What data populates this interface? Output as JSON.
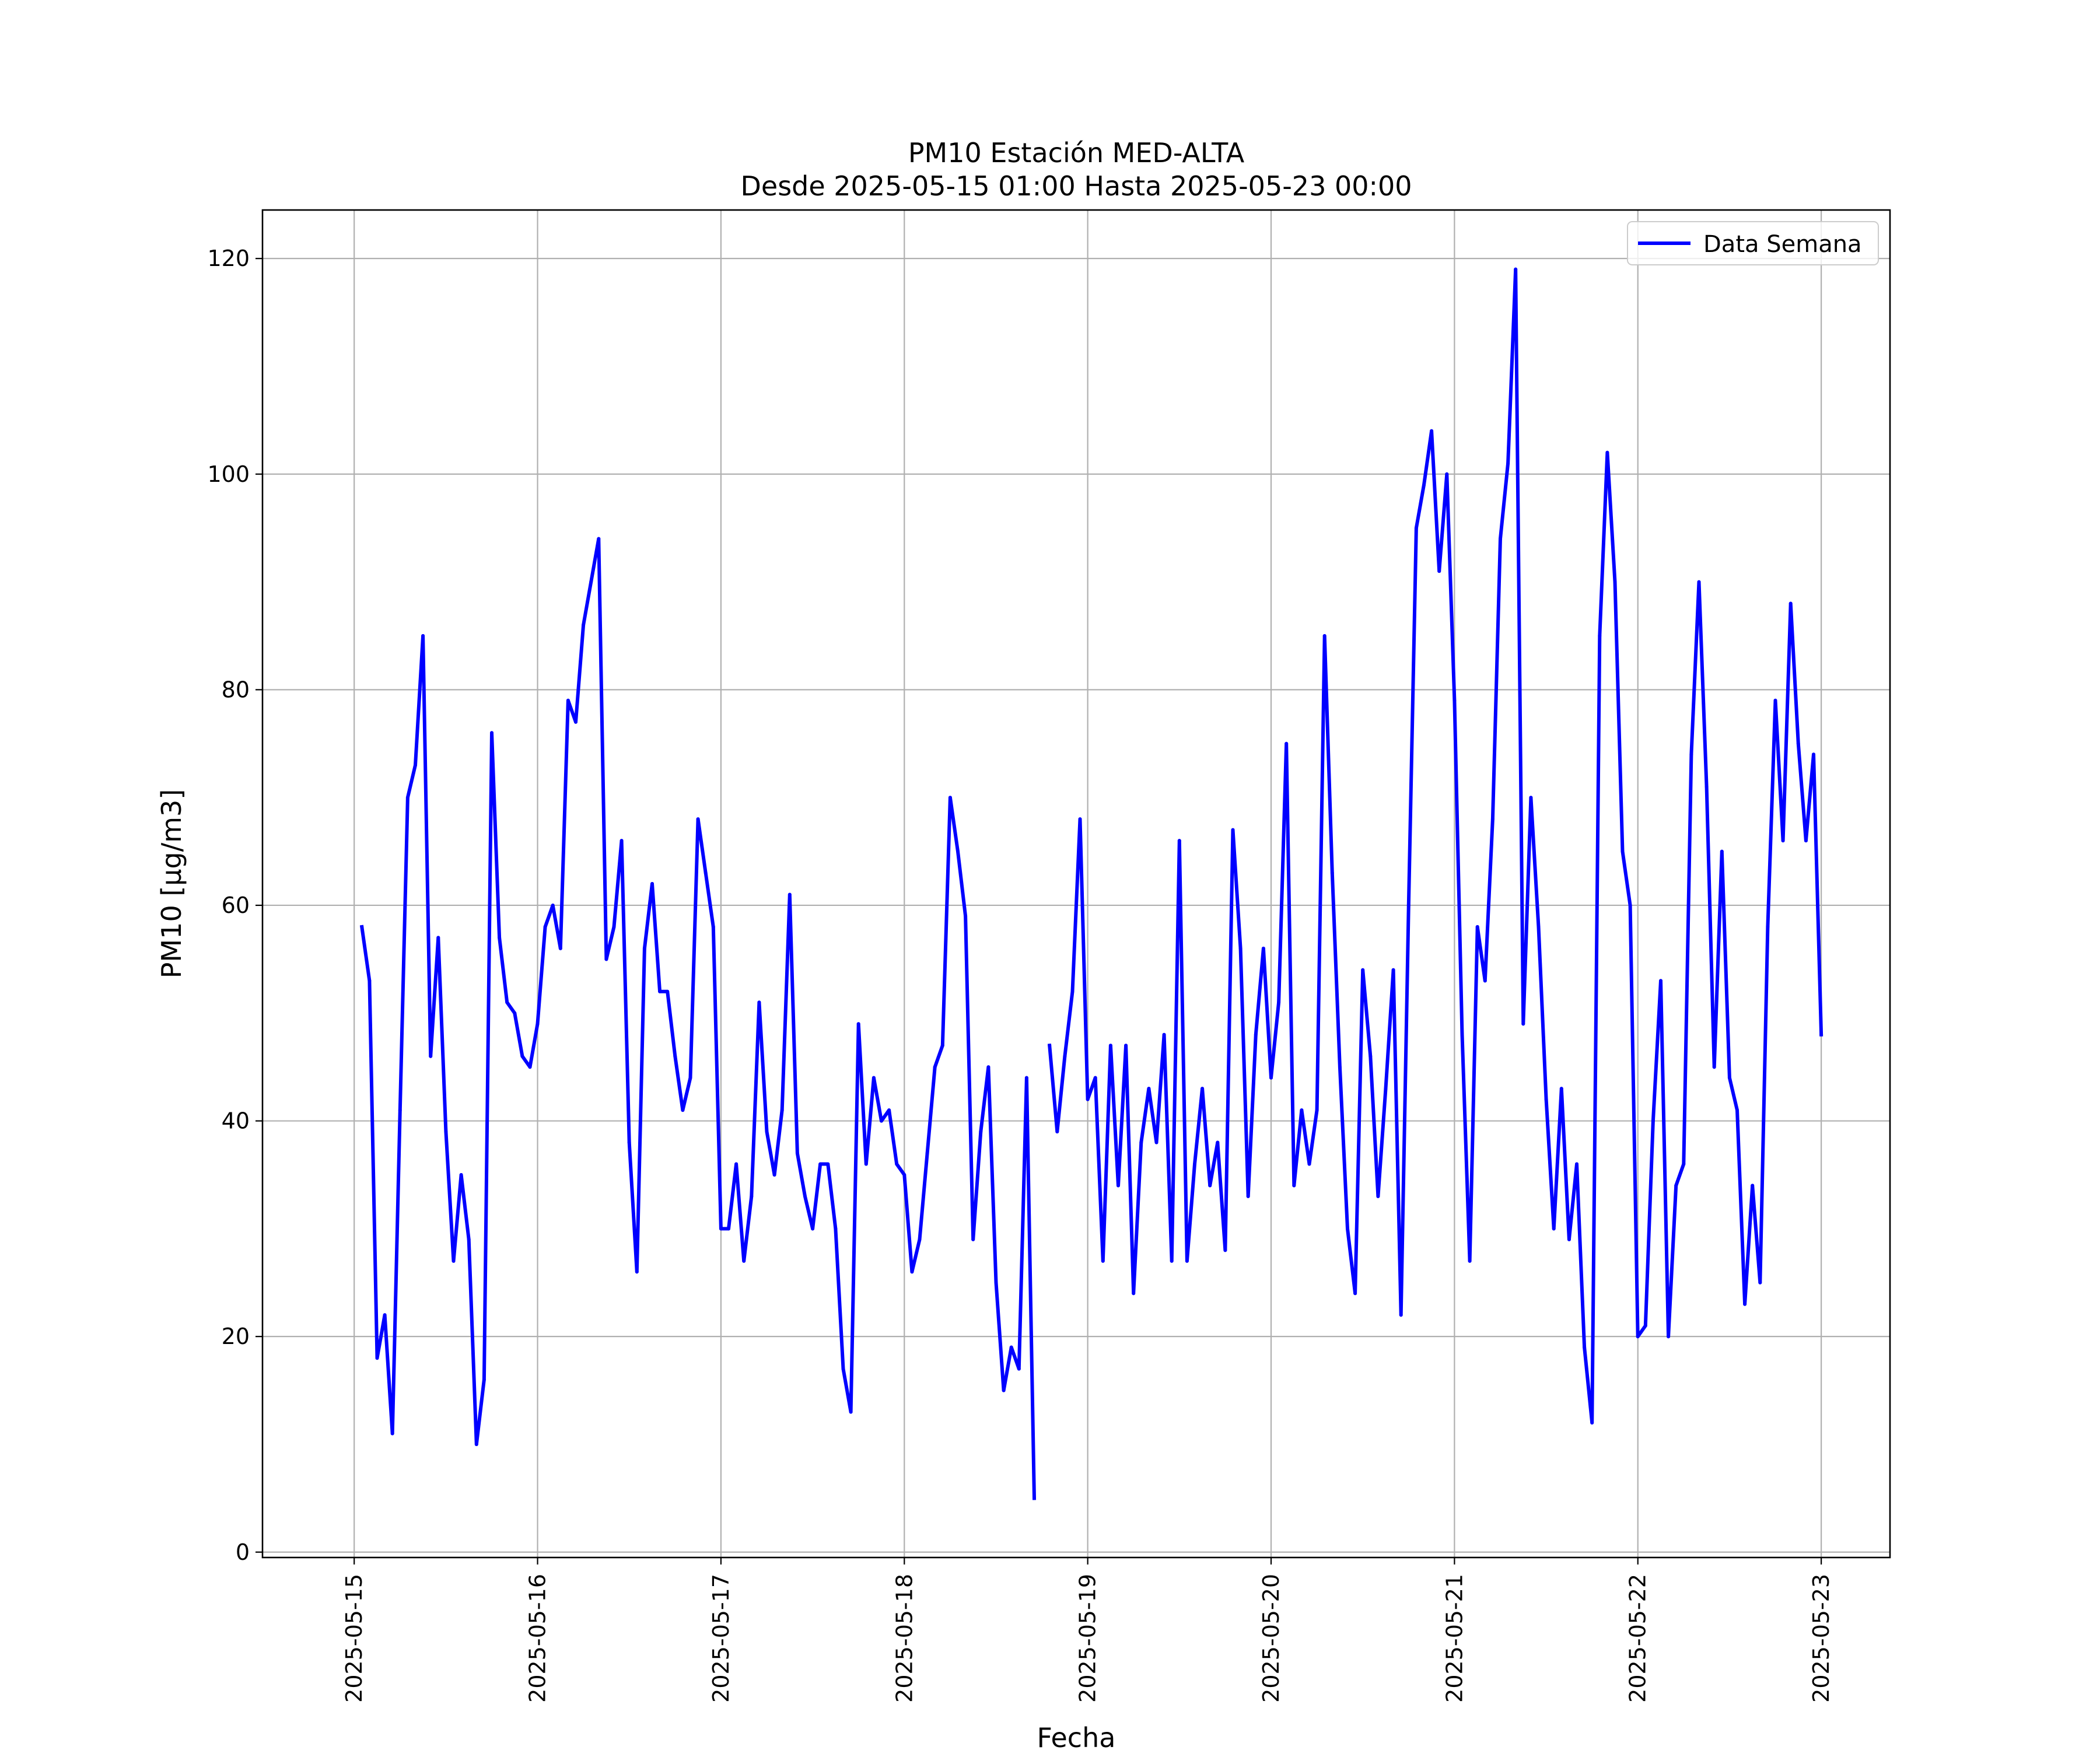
{
  "chart_data": {
    "type": "line",
    "title": "PM10 Estación MED-ALTA",
    "subtitle": "Desde 2025-05-15 01:00 Hasta 2025-05-23 00:00",
    "xlabel": "Fecha",
    "ylabel": "PM10 [μg/m3]",
    "xlim": [
      "2025-05-14 12:00",
      "2025-05-23 09:00"
    ],
    "ylim": [
      -0.5,
      124.5
    ],
    "x_ticks": [
      "2025-05-15",
      "2025-05-16",
      "2025-05-17",
      "2025-05-18",
      "2025-05-19",
      "2025-05-20",
      "2025-05-21",
      "2025-05-22",
      "2025-05-23"
    ],
    "y_ticks": [
      0,
      20,
      40,
      60,
      80,
      100,
      120
    ],
    "grid": true,
    "legend_position": "top-right",
    "x_start": "2025-05-15 01:00",
    "x_interval": "1 hour",
    "series": [
      {
        "name": "Data Semana",
        "color": "#0000ff",
        "values": [
          58,
          53,
          18,
          22,
          11,
          41,
          70,
          73,
          85,
          46,
          57,
          39,
          27,
          35,
          29,
          10,
          16,
          76,
          57,
          51,
          50,
          46,
          45,
          49,
          58,
          60,
          56,
          79,
          77,
          86,
          90,
          94,
          55,
          58,
          66,
          38,
          26,
          56,
          62,
          52,
          52,
          46,
          41,
          44,
          68,
          63,
          58,
          30,
          30,
          36,
          27,
          33,
          51,
          39,
          35,
          41,
          61,
          37,
          33,
          30,
          36,
          36,
          30,
          17,
          13,
          49,
          36,
          44,
          40,
          41,
          36,
          35,
          26,
          29,
          37,
          45,
          47,
          70,
          65,
          59,
          29,
          39,
          45,
          25,
          15,
          19,
          17,
          44,
          5,
          null,
          47,
          39,
          46,
          52,
          68,
          42,
          44,
          27,
          47,
          34,
          47,
          24,
          38,
          43,
          38,
          48,
          27,
          66,
          27,
          36,
          43,
          34,
          38,
          28,
          67,
          56,
          33,
          48,
          56,
          44,
          51,
          75,
          34,
          41,
          36,
          41,
          85,
          63,
          45,
          30,
          24,
          54,
          46,
          33,
          43,
          54,
          22,
          60,
          95,
          99,
          104,
          91,
          100,
          79,
          48,
          27,
          58,
          53,
          68,
          94,
          101,
          119,
          49,
          70,
          58,
          42,
          30,
          43,
          29,
          36,
          19,
          12,
          85,
          102,
          90,
          65,
          60,
          20,
          21,
          40,
          53,
          20,
          34,
          36,
          74,
          90,
          71,
          45,
          65,
          44,
          41,
          23,
          34,
          25,
          58,
          79,
          66,
          88,
          75,
          66,
          74,
          48
        ]
      }
    ]
  }
}
